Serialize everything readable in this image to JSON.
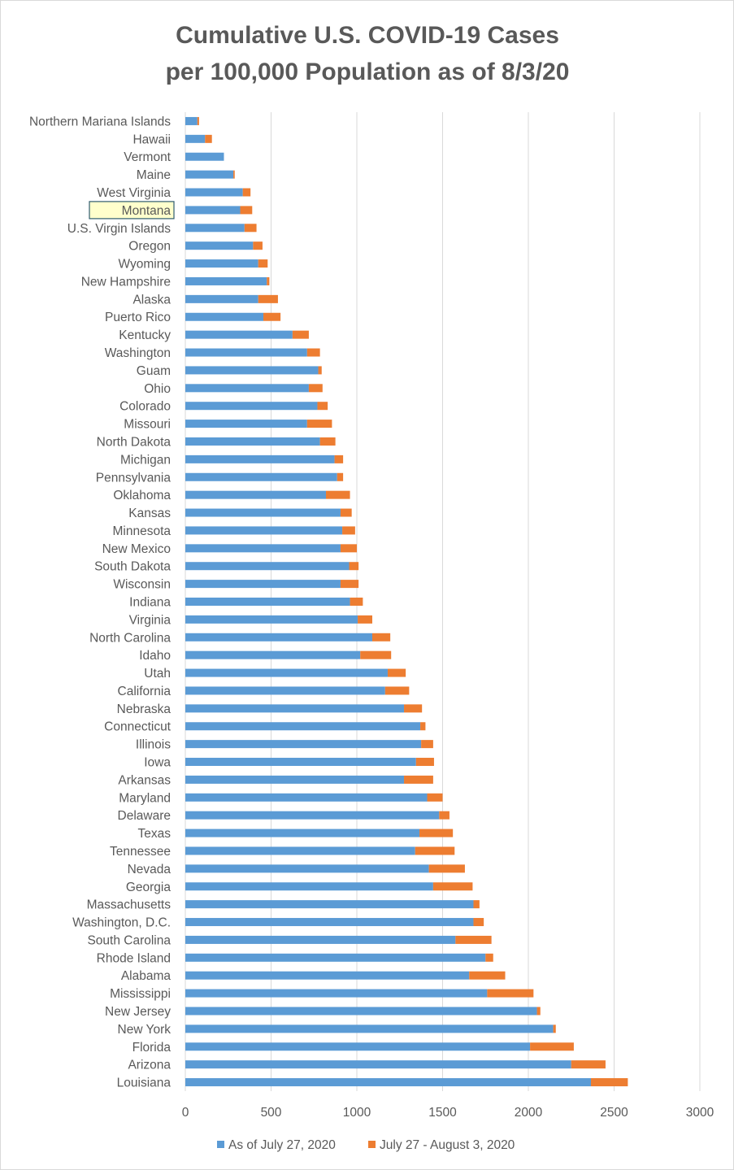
{
  "chart_data": {
    "type": "bar",
    "orientation": "horizontal",
    "stacked": true,
    "title": [
      "Cumulative U.S. COVID-19 Cases",
      "per 100,000 Population as of 8/3/20"
    ],
    "xlim": [
      0,
      3000
    ],
    "xticks": [
      0,
      500,
      1000,
      1500,
      2000,
      2500,
      3000
    ],
    "grid": true,
    "legend_position": "bottom",
    "highlighted_category": "Montana",
    "categories": [
      "Northern Mariana Islands",
      "Hawaii",
      "Vermont",
      "Maine",
      "West Virginia",
      "Montana",
      "U.S. Virgin Islands",
      "Oregon",
      "Wyoming",
      "New Hampshire",
      "Alaska",
      "Puerto Rico",
      "Kentucky",
      "Washington",
      "Guam",
      "Ohio",
      "Colorado",
      "Missouri",
      "North Dakota",
      "Michigan",
      "Pennsylvania",
      "Oklahoma",
      "Kansas",
      "Minnesota",
      "New Mexico",
      "South Dakota",
      "Wisconsin",
      "Indiana",
      "Virginia",
      "North Carolina",
      "Idaho",
      "Utah",
      "California",
      "Nebraska",
      "Connecticut",
      "Illinois",
      "Iowa",
      "Arkansas",
      "Maryland",
      "Delaware",
      "Texas",
      "Tennessee",
      "Nevada",
      "Georgia",
      "Massachusetts",
      "Washington, D.C.",
      "South Carolina",
      "Rhode Island",
      "Alabama",
      "Mississippi",
      "New Jersey",
      "New York",
      "Florida",
      "Arizona",
      "Louisiana"
    ],
    "series": [
      {
        "name": "As of July 27, 2020",
        "color": "#5b9bd5",
        "values": [
          70,
          115,
          225,
          280,
          335,
          320,
          345,
          395,
          425,
          475,
          425,
          455,
          625,
          710,
          775,
          720,
          770,
          710,
          785,
          870,
          885,
          820,
          905,
          915,
          905,
          955,
          905,
          960,
          1005,
          1090,
          1020,
          1180,
          1165,
          1275,
          1370,
          1375,
          1345,
          1275,
          1410,
          1480,
          1365,
          1340,
          1420,
          1445,
          1680,
          1680,
          1575,
          1750,
          1655,
          1760,
          2050,
          2145,
          2010,
          2250,
          2365
        ]
      },
      {
        "name": "July 27 - August 3, 2020",
        "color": "#ed7d31",
        "values": [
          10,
          40,
          0,
          8,
          45,
          70,
          70,
          55,
          55,
          15,
          115,
          100,
          95,
          75,
          20,
          80,
          60,
          145,
          90,
          50,
          35,
          140,
          65,
          75,
          95,
          55,
          105,
          75,
          85,
          105,
          180,
          105,
          140,
          105,
          30,
          70,
          105,
          170,
          90,
          60,
          195,
          230,
          210,
          230,
          35,
          60,
          210,
          45,
          210,
          270,
          20,
          15,
          255,
          200,
          215
        ]
      }
    ]
  }
}
